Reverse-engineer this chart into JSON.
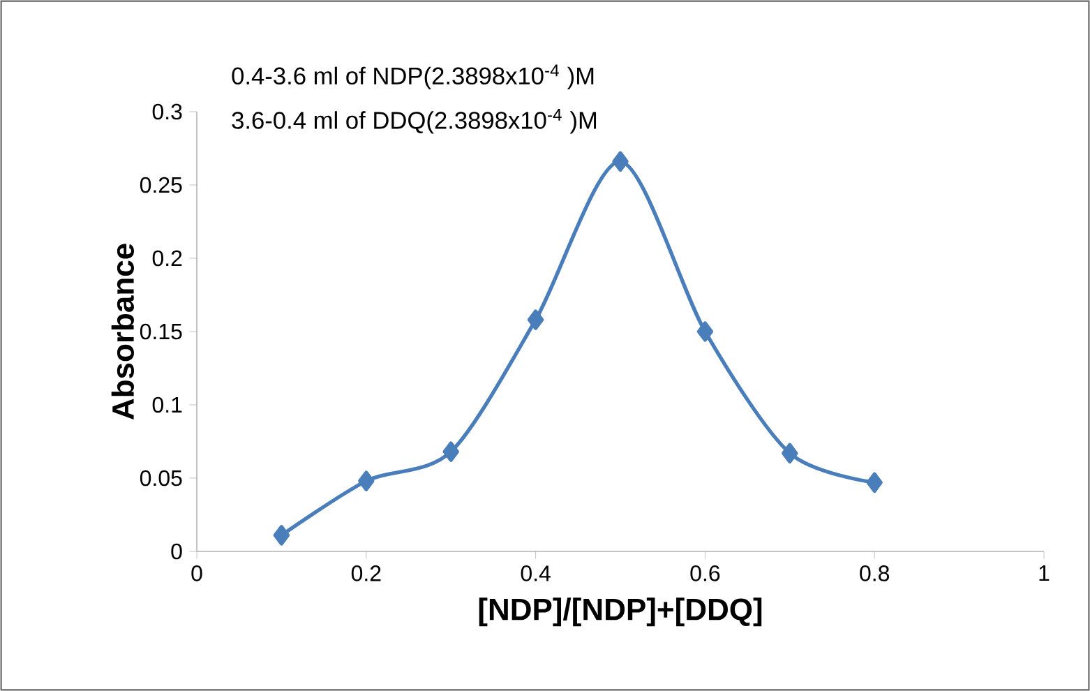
{
  "chart_data": {
    "type": "line",
    "xlabel": "[NDP]/[NDP]+[DDQ]",
    "ylabel": "Absorbance",
    "annotations": [
      "0.4-3.6 ml of NDP(2.3898x10$^{-4}$ )M",
      "3.6-0.4 ml of DDQ(2.3898x10$^{-4}$ )M"
    ],
    "x": [
      0.1,
      0.2,
      0.3,
      0.4,
      0.5,
      0.6,
      0.7,
      0.8
    ],
    "series": [
      {
        "color": "#4a7ebb",
        "values": [
          0.011,
          0.048,
          0.068,
          0.158,
          0.266,
          0.15,
          0.067,
          0.047
        ]
      }
    ],
    "xlim": [
      0,
      1
    ],
    "ylim": [
      0,
      0.3
    ],
    "xticks": [
      0,
      0.2,
      0.4,
      0.6,
      0.8,
      1
    ],
    "yticks": [
      0,
      0.05,
      0.1,
      0.15,
      0.2,
      0.25,
      0.3
    ],
    "marker": "diamond",
    "line_style": "solid"
  }
}
